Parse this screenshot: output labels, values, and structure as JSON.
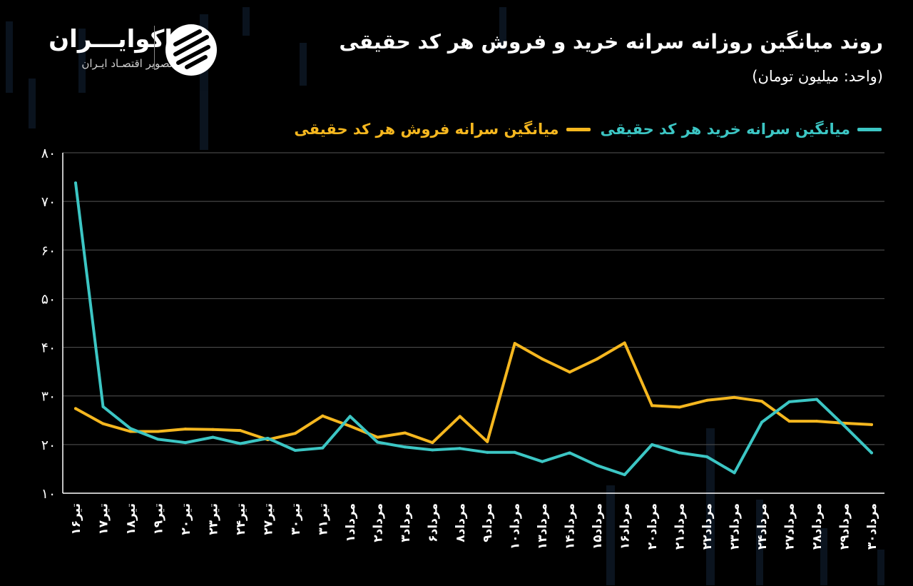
{
  "brand": {
    "name": "اکوایـــران",
    "tagline": "تصویر اقتصـاد ایـران"
  },
  "header": {
    "title": "روند میانگین روزانه سرانه خرید و فروش هر کد حقیقی",
    "unit": "(واحد: میلیون تومان)"
  },
  "colors": {
    "background": "#000000",
    "buy": "#3cc6c4",
    "sell": "#f5b71f",
    "grid": "#555555",
    "text": "#ffffff"
  },
  "chart_data": {
    "type": "line",
    "title": "روند میانگین روزانه سرانه خرید و فروش هر کد حقیقی",
    "unit": "(واحد: میلیون تومان)",
    "ylim": [
      10,
      80
    ],
    "yticks": [
      "۱۰",
      "۲۰",
      "۳۰",
      "۴۰",
      "۵۰",
      "۶۰",
      "۷۰",
      "۸۰"
    ],
    "ytick_values": [
      10,
      20,
      30,
      40,
      50,
      60,
      70,
      80
    ],
    "grid": true,
    "legend_position": "top-right",
    "categories": [
      "۱۶تیر",
      "۱۷تیر",
      "۱۸تیر",
      "۱۹تیر",
      "۲۰تیر",
      "۲۳تیر",
      "۲۴تیر",
      "۲۷تیر",
      "۳۰تیر",
      "۳۱تیر",
      "۱مرداد",
      "۲مرداد",
      "۳مرداد",
      "۶مرداد",
      "۸مرداد",
      "۹مرداد",
      "۱۰مرداد",
      "۱۳مرداد",
      "۱۴مرداد",
      "۱۵مرداد",
      "۱۶مرداد",
      "۲۰مرداد",
      "۲۱مرداد",
      "۲۲مرداد",
      "۲۳مرداد",
      "۲۴مرداد",
      "۲۷مرداد",
      "۲۸مرداد",
      "۲۹مرداد",
      "۳۰مرداد"
    ],
    "series": [
      {
        "name": "میانگین سرانه خرید هر کد حقیقی",
        "color": "#3cc6c4",
        "values": [
          73.8,
          27.8,
          23.3,
          21.1,
          20.4,
          21.5,
          20.2,
          21.3,
          18.8,
          19.3,
          25.8,
          20.5,
          19.5,
          18.9,
          19.2,
          18.4,
          18.4,
          16.5,
          18.3,
          15.7,
          13.8,
          20.0,
          18.3,
          17.5,
          14.2,
          24.6,
          28.8,
          29.3,
          23.9,
          18.3
        ]
      },
      {
        "name": "میانگین سرانه فروش هر کد حقیقی",
        "color": "#f5b71f",
        "values": [
          27.4,
          24.3,
          22.7,
          22.7,
          23.2,
          23.1,
          22.9,
          21.0,
          22.3,
          25.9,
          23.8,
          21.5,
          22.4,
          20.4,
          25.8,
          20.6,
          40.8,
          37.6,
          34.9,
          37.6,
          40.9,
          28.0,
          27.7,
          29.1,
          29.7,
          28.9,
          24.8,
          24.8,
          24.4,
          24.1
        ]
      }
    ]
  }
}
